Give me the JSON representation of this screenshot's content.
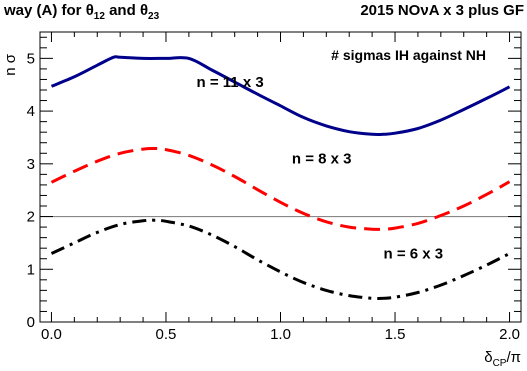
{
  "header": {
    "left_title": "way (A) for θ12 and θ23",
    "left_parts": {
      "prefix": "way (A) for ",
      "theta": "θ",
      "sub1": "12",
      "and": " and ",
      "sub2": "23"
    },
    "right_title": "2015 NOνA x 3 plus GF"
  },
  "chart_data": {
    "type": "line",
    "title": "",
    "xlabel": "δCP/π",
    "xlabel_parts": {
      "main": "δ",
      "sub": "CP",
      "tail": "/π"
    },
    "ylabel": "n σ",
    "xlim": [
      -0.05,
      2.05
    ],
    "ylim": [
      0,
      5.5
    ],
    "xticks": [
      0.0,
      0.5,
      1.0,
      1.5,
      2.0
    ],
    "xtick_labels": [
      "0.0",
      "0.5",
      "1.0",
      "1.5",
      "2.0"
    ],
    "yticks": [
      0,
      1,
      2,
      3,
      4,
      5
    ],
    "ytick_labels": [
      "0",
      "1",
      "2",
      "3",
      "4",
      "5"
    ],
    "grid": false,
    "legend_text": "# sigmas IH against NH",
    "reference_line": {
      "y": 2.0,
      "color": "#888888"
    },
    "series": [
      {
        "name": "n = 11 x 3",
        "color": "#00008b",
        "style": "solid",
        "x": [
          0.0,
          0.1,
          0.2,
          0.27,
          0.3,
          0.4,
          0.5,
          0.6,
          0.7,
          0.8,
          0.9,
          1.0,
          1.1,
          1.2,
          1.3,
          1.4,
          1.45,
          1.5,
          1.6,
          1.7,
          1.8,
          1.9,
          2.0
        ],
        "values": [
          4.47,
          4.65,
          4.87,
          5.02,
          5.02,
          5.0,
          5.0,
          5.0,
          4.78,
          4.55,
          4.32,
          4.1,
          3.88,
          3.72,
          3.61,
          3.56,
          3.56,
          3.58,
          3.67,
          3.83,
          4.03,
          4.24,
          4.46
        ]
      },
      {
        "name": "n = 8 x 3",
        "color": "#ff0000",
        "style": "dashed",
        "x": [
          0.0,
          0.1,
          0.2,
          0.3,
          0.4,
          0.45,
          0.5,
          0.6,
          0.7,
          0.8,
          0.9,
          1.0,
          1.1,
          1.2,
          1.3,
          1.4,
          1.45,
          1.5,
          1.6,
          1.7,
          1.8,
          1.9,
          2.0
        ],
        "values": [
          2.65,
          2.86,
          3.05,
          3.2,
          3.28,
          3.29,
          3.27,
          3.16,
          2.98,
          2.76,
          2.51,
          2.27,
          2.06,
          1.9,
          1.8,
          1.76,
          1.76,
          1.78,
          1.87,
          2.02,
          2.2,
          2.42,
          2.66
        ]
      },
      {
        "name": "n = 6 x 3",
        "color": "#000000",
        "style": "dashdot",
        "x": [
          0.0,
          0.1,
          0.2,
          0.3,
          0.4,
          0.45,
          0.5,
          0.6,
          0.7,
          0.8,
          0.9,
          1.0,
          1.1,
          1.2,
          1.3,
          1.4,
          1.45,
          1.5,
          1.6,
          1.7,
          1.8,
          1.9,
          2.0
        ],
        "values": [
          1.3,
          1.5,
          1.7,
          1.85,
          1.92,
          1.93,
          1.91,
          1.82,
          1.65,
          1.43,
          1.18,
          0.95,
          0.75,
          0.6,
          0.5,
          0.45,
          0.45,
          0.47,
          0.56,
          0.7,
          0.88,
          1.08,
          1.3
        ]
      }
    ],
    "annotations": [
      {
        "text": "n = 11 x 3",
        "x": 0.78,
        "y": 4.55
      },
      {
        "text": "n = 8 x 3",
        "x": 1.18,
        "y": 3.1
      },
      {
        "text": "n = 6 x 3",
        "x": 1.58,
        "y": 1.3
      }
    ]
  }
}
